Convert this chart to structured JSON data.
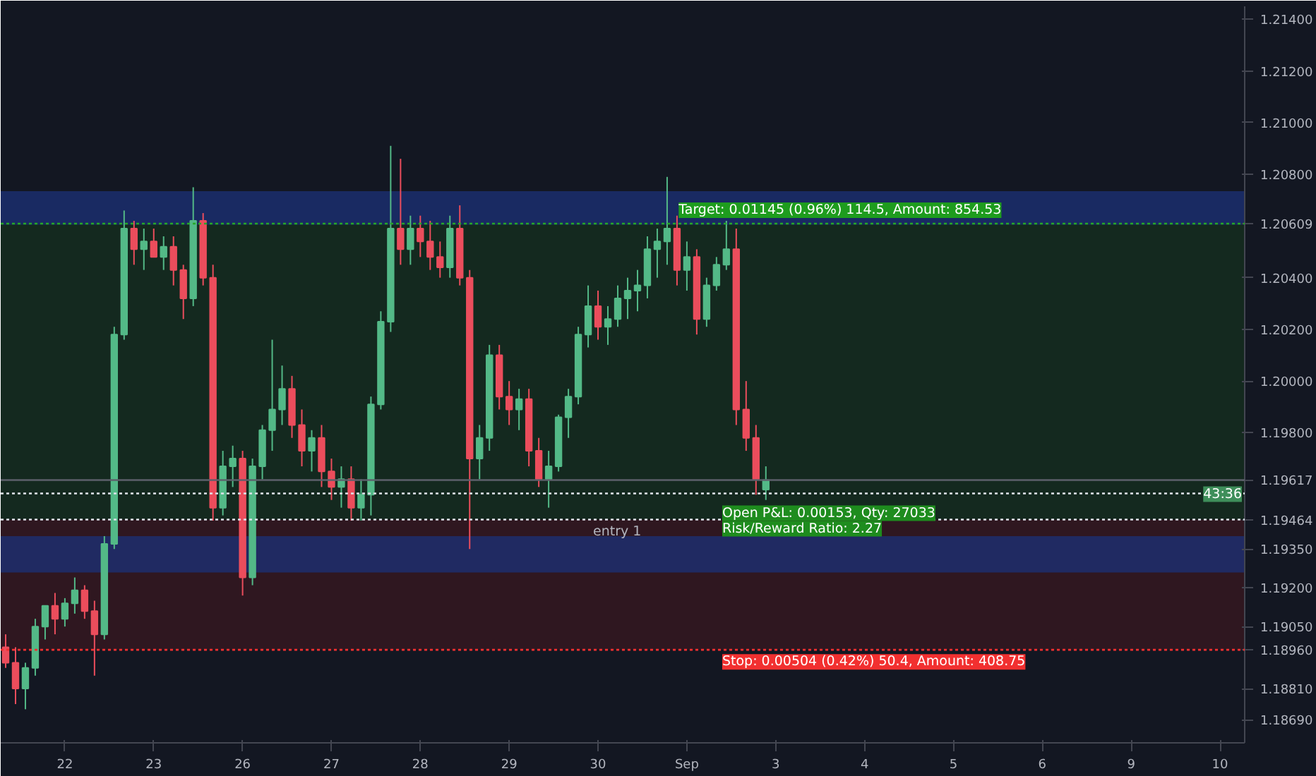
{
  "chart_data": {
    "type": "candlestick",
    "categories": [
      null,
      null,
      null,
      null,
      null,
      null,
      "22",
      null,
      null,
      null,
      null,
      null,
      null,
      null,
      null,
      "23",
      null,
      null,
      null,
      null,
      null,
      null,
      null,
      null,
      "26",
      null,
      null,
      null,
      null,
      null,
      null,
      null,
      null,
      "27",
      null,
      null,
      null,
      null,
      null,
      null,
      null,
      null,
      "28",
      null,
      null,
      null,
      null,
      null,
      null,
      null,
      null,
      "29",
      null,
      null,
      null,
      null,
      null,
      null,
      null,
      null,
      "30",
      null,
      null,
      null,
      null,
      null,
      null,
      null,
      null,
      "Sep",
      null,
      null,
      null,
      null,
      null,
      null,
      null,
      null,
      "3",
      null,
      null,
      null,
      null,
      null,
      null,
      null,
      null,
      "4",
      null,
      null,
      null,
      null,
      null,
      null,
      null,
      null,
      "5",
      null,
      null,
      null,
      null,
      null,
      null,
      null,
      null,
      "6",
      null,
      null,
      null,
      null,
      null,
      null,
      null,
      null,
      "9",
      null,
      null,
      null,
      null,
      null,
      null,
      null,
      null,
      "10",
      null,
      null
    ],
    "ohlc": [
      [
        1.1897,
        1.1902,
        1.1889,
        1.1891
      ],
      [
        1.1891,
        1.1897,
        1.1875,
        1.1881
      ],
      [
        1.1881,
        1.1891,
        1.1873,
        1.1889
      ],
      [
        1.1889,
        1.1908,
        1.1886,
        1.1905
      ],
      [
        1.1905,
        1.1913,
        1.19,
        1.1913
      ],
      [
        1.1913,
        1.1918,
        1.1902,
        1.1908
      ],
      [
        1.1908,
        1.1916,
        1.1905,
        1.1914
      ],
      [
        1.1914,
        1.1924,
        1.191,
        1.1919
      ],
      [
        1.1919,
        1.1921,
        1.1908,
        1.1911
      ],
      [
        1.1911,
        1.1915,
        1.1886,
        1.1902
      ],
      [
        1.1902,
        1.194,
        1.19,
        1.1937
      ],
      [
        1.1937,
        1.2021,
        1.1935,
        1.2018
      ],
      [
        1.2018,
        1.2066,
        1.2016,
        1.2059
      ],
      [
        1.2059,
        1.2062,
        1.2045,
        1.2051
      ],
      [
        1.2051,
        1.2059,
        1.2043,
        1.2054
      ],
      [
        1.2054,
        1.2059,
        1.2048,
        1.2048
      ],
      [
        1.2048,
        1.2056,
        1.2043,
        1.2052
      ],
      [
        1.2052,
        1.2056,
        1.2037,
        1.2043
      ],
      [
        1.2043,
        1.2045,
        1.2024,
        1.2032
      ],
      [
        1.2032,
        1.2075,
        1.2029,
        1.2062
      ],
      [
        1.2062,
        1.2065,
        1.2037,
        1.204
      ],
      [
        1.204,
        1.2045,
        1.1946,
        1.1951
      ],
      [
        1.1951,
        1.1973,
        1.1948,
        1.1967
      ],
      [
        1.1967,
        1.1975,
        1.1959,
        1.197
      ],
      [
        1.197,
        1.1973,
        1.1917,
        1.1924
      ],
      [
        1.1924,
        1.197,
        1.1921,
        1.1967
      ],
      [
        1.1967,
        1.1983,
        1.1962,
        1.1981
      ],
      [
        1.1981,
        1.2016,
        1.1973,
        1.1989
      ],
      [
        1.1989,
        1.2006,
        1.1983,
        1.1997
      ],
      [
        1.1997,
        1.2002,
        1.1978,
        1.1983
      ],
      [
        1.1983,
        1.1989,
        1.1967,
        1.1973
      ],
      [
        1.1973,
        1.1981,
        1.1965,
        1.1978
      ],
      [
        1.1978,
        1.1983,
        1.1959,
        1.1965
      ],
      [
        1.1965,
        1.197,
        1.1954,
        1.1959
      ],
      [
        1.1959,
        1.1967,
        1.1951,
        1.1962
      ],
      [
        1.1962,
        1.1967,
        1.1946,
        1.1951
      ],
      [
        1.1951,
        1.1962,
        1.1946,
        1.1956
      ],
      [
        1.1956,
        1.1994,
        1.1948,
        1.1991
      ],
      [
        1.1991,
        1.2027,
        1.1989,
        1.2023
      ],
      [
        1.2023,
        1.2091,
        1.2019,
        1.2059
      ],
      [
        1.2059,
        1.2086,
        1.2045,
        1.2051
      ],
      [
        1.2051,
        1.2064,
        1.2045,
        1.2059
      ],
      [
        1.2059,
        1.2064,
        1.2048,
        1.2054
      ],
      [
        1.2054,
        1.2062,
        1.2043,
        1.2048
      ],
      [
        1.2048,
        1.2054,
        1.204,
        1.2044
      ],
      [
        1.2044,
        1.2064,
        1.204,
        1.2059
      ],
      [
        1.2059,
        1.2068,
        1.2037,
        1.204
      ],
      [
        1.204,
        1.2043,
        1.1935,
        1.197
      ],
      [
        1.197,
        1.1983,
        1.1962,
        1.1978
      ],
      [
        1.1978,
        1.2014,
        1.1973,
        1.201
      ],
      [
        1.201,
        1.2014,
        1.1989,
        1.1994
      ],
      [
        1.1994,
        1.2,
        1.1983,
        1.1989
      ],
      [
        1.1989,
        1.1997,
        1.1981,
        1.1993
      ],
      [
        1.1993,
        1.1997,
        1.1967,
        1.1973
      ],
      [
        1.1973,
        1.1978,
        1.1959,
        1.1962
      ],
      [
        1.1962,
        1.1973,
        1.1951,
        1.1967
      ],
      [
        1.1967,
        1.1987,
        1.1965,
        1.1986
      ],
      [
        1.1986,
        1.1997,
        1.1978,
        1.1994
      ],
      [
        1.1994,
        1.2021,
        1.1991,
        1.2018
      ],
      [
        1.2018,
        1.2037,
        1.2013,
        1.2029
      ],
      [
        1.2029,
        1.2035,
        1.2016,
        1.2021
      ],
      [
        1.2021,
        1.2029,
        1.2014,
        1.2024
      ],
      [
        1.2024,
        1.2037,
        1.2021,
        1.2032
      ],
      [
        1.2032,
        1.204,
        1.2024,
        1.2035
      ],
      [
        1.2035,
        1.2043,
        1.2027,
        1.2037
      ],
      [
        1.2037,
        1.2056,
        1.2032,
        1.2051
      ],
      [
        1.2051,
        1.2059,
        1.204,
        1.2054
      ],
      [
        1.2054,
        1.2079,
        1.2045,
        1.2059
      ],
      [
        1.2059,
        1.2064,
        1.2037,
        1.2043
      ],
      [
        1.2043,
        1.2054,
        1.2035,
        1.2048
      ],
      [
        1.2048,
        1.2051,
        1.2018,
        1.2024
      ],
      [
        1.2024,
        1.204,
        1.2021,
        1.2037
      ],
      [
        1.2037,
        1.2048,
        1.2035,
        1.2045
      ],
      [
        1.2045,
        1.2062,
        1.2043,
        1.2051
      ],
      [
        1.2051,
        1.2059,
        1.1983,
        1.1989
      ],
      [
        1.1989,
        1.2,
        1.1973,
        1.1978
      ],
      [
        1.1978,
        1.1983,
        1.1956,
        1.1962
      ],
      [
        1.1958,
        1.1967,
        1.1954,
        1.19617
      ],
      null,
      null,
      null,
      null,
      null,
      null,
      null,
      null,
      null,
      null,
      null,
      null,
      null,
      null,
      null,
      null,
      null,
      null,
      null,
      null,
      null,
      null,
      null,
      null,
      null,
      null,
      null,
      null,
      null,
      null,
      null,
      null,
      null,
      null,
      null,
      null,
      null,
      null,
      null,
      null,
      null,
      null,
      null,
      null,
      null,
      null,
      null,
      null
    ],
    "ylim": [
      1.186,
      1.2145
    ],
    "yticks": [
      {
        "value": 1.1869,
        "label": "1.18690"
      },
      {
        "value": 1.1881,
        "label": "1.18810"
      },
      {
        "value": 1.1896,
        "label": "1.18960"
      },
      {
        "value": 1.1905,
        "label": "1.19050"
      },
      {
        "value": 1.192,
        "label": "1.19200"
      },
      {
        "value": 1.1935,
        "label": "1.19350"
      },
      {
        "value": 1.19464,
        "label": "1.19464"
      },
      {
        "value": 1.19617,
        "label": "1.19617"
      },
      {
        "value": 1.198,
        "label": "1.19800"
      },
      {
        "value": 1.2,
        "label": "1.20000"
      },
      {
        "value": 1.202,
        "label": "1.20200"
      },
      {
        "value": 1.204,
        "label": "1.20400"
      },
      {
        "value": 1.20609,
        "label": "1.20609"
      },
      {
        "value": 1.208,
        "label": "1.20800"
      },
      {
        "value": 1.21,
        "label": "1.21000"
      },
      {
        "value": 1.212,
        "label": "1.21200"
      },
      {
        "value": 1.214,
        "label": "1.21400"
      }
    ],
    "bands": [
      {
        "axis": "y",
        "from": 1.19464,
        "to": 1.20609,
        "color": "#15301f"
      },
      {
        "axis": "y",
        "from": 1.1896,
        "to": 1.19464,
        "color": "#3a1820"
      },
      {
        "axis": "y",
        "from": 1.20605,
        "to": 1.20735,
        "color": "#1c3178"
      },
      {
        "axis": "y",
        "from": 1.19259,
        "to": 1.194,
        "color": "#1c3178"
      }
    ],
    "ref_lines": [
      {
        "axis": "y",
        "value": 1.20609,
        "color": "#27a827",
        "line_style": "dotted"
      },
      {
        "axis": "y",
        "value": 1.1896,
        "color": "#f23030",
        "line_style": "dotted"
      },
      {
        "axis": "y",
        "value": 1.19464,
        "label": "entry 1",
        "color": "#e0e3eb",
        "line_style": "dotted"
      },
      {
        "axis": "y",
        "value": 1.19565,
        "color": "#e0e3eb",
        "line_style": "dotted"
      },
      {
        "axis": "y",
        "value": 1.19617,
        "color": "#5d606b",
        "line_style": "solid"
      }
    ],
    "annotations": [
      "Target: 0.01145 (0.96%) 114.5, Amount: 854.53",
      "Stop: 0.00504 (0.42%) 50.4, Amount: 408.75",
      "Open P&L: 0.00153, Qty: 27033",
      "Risk/Reward Ratio: 2.27",
      "43:36"
    ],
    "grid": false
  }
}
